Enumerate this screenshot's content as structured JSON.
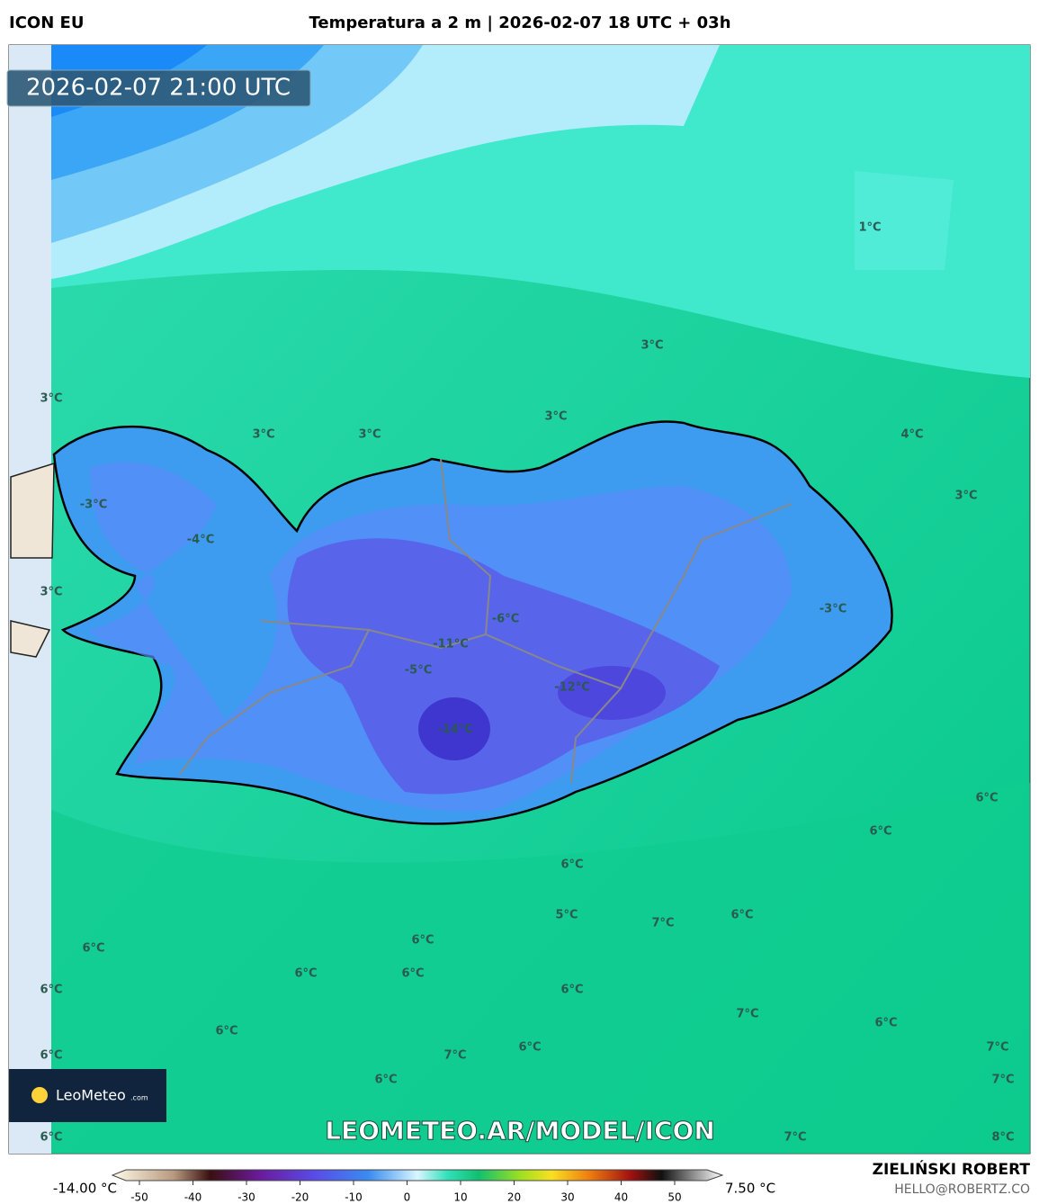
{
  "header": {
    "model": "ICON EU",
    "title": "Temperatura a 2 m | 2026-02-07 18 UTC + 03h"
  },
  "valid_time": "2026-02-07 21:00 UTC",
  "map_labels": [
    "1°C",
    "3°C",
    "3°C",
    "3°C",
    "3°C",
    "3°C",
    "4°C",
    "3°C",
    "-3°C",
    "-4°C",
    "3°C",
    "-3°C",
    "-6°C",
    "-11°C",
    "-5°C",
    "-12°C",
    "-14°C",
    "6°C",
    "6°C",
    "6°C",
    "5°C",
    "7°C",
    "6°C",
    "6°C",
    "6°C",
    "6°C",
    "6°C",
    "6°C",
    "6°C",
    "7°C",
    "6°C",
    "6°C",
    "6°C",
    "7°C",
    "6°C",
    "7°C",
    "6°C",
    "7°C",
    "6°C",
    "7°C",
    "8°C"
  ],
  "logo": {
    "name": "LeoMeteo",
    "suffix": ".com"
  },
  "watermark": "LEOMETEO.AR/MODEL/ICON",
  "colorbar": {
    "min_label": "-14.00 °C",
    "max_label": "7.50 °C",
    "ticks": [
      -50,
      -40,
      -30,
      -20,
      -10,
      0,
      10,
      20,
      30,
      40,
      50
    ]
  },
  "footer": {
    "author": "ZIELIŃSKI ROBERT",
    "contact": "HELLO@ROBERTZ.CO"
  }
}
